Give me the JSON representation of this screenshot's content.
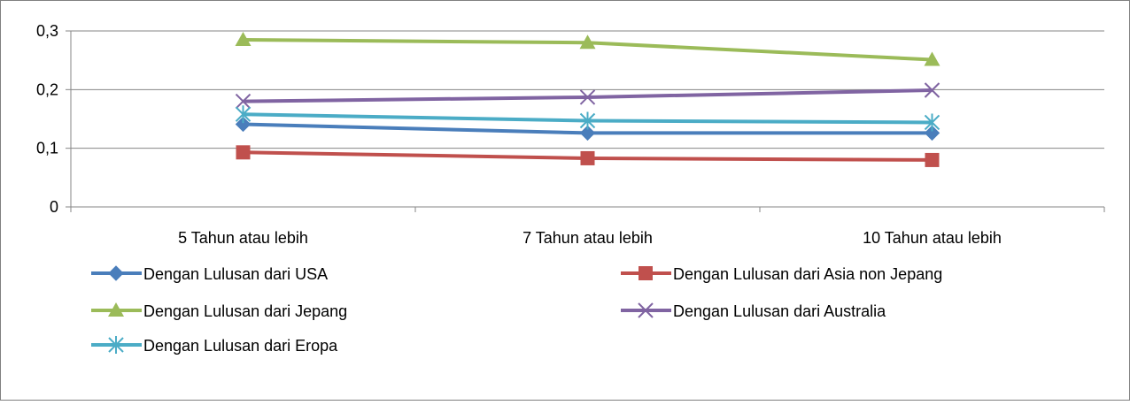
{
  "chart_data": {
    "type": "line",
    "title": "",
    "xlabel": "",
    "ylabel": "",
    "categories": [
      "5 Tahun atau lebih",
      "7 Tahun atau lebih",
      "10 Tahun atau lebih"
    ],
    "ylim": [
      0,
      0.3
    ],
    "yticks": [
      0,
      0.1,
      0.2,
      0.3
    ],
    "ytick_labels": [
      "0",
      "0,1",
      "0,2",
      "0,3"
    ],
    "grid": true,
    "legend_position": "bottom",
    "series": [
      {
        "name": "Dengan Lulusan dari USA",
        "values": [
          0.141,
          0.126,
          0.126
        ],
        "color": "#4a7ebb",
        "marker": "diamond"
      },
      {
        "name": "Dengan Lulusan dari Asia non Jepang",
        "values": [
          0.093,
          0.083,
          0.08
        ],
        "color": "#c0504d",
        "marker": "square"
      },
      {
        "name": "Dengan Lulusan dari Jepang",
        "values": [
          0.285,
          0.28,
          0.251
        ],
        "color": "#9bbb59",
        "marker": "triangle"
      },
      {
        "name": "Dengan Lulusan dari Australia",
        "values": [
          0.18,
          0.187,
          0.199
        ],
        "color": "#8064a2",
        "marker": "x"
      },
      {
        "name": "Dengan Lulusan dari Eropa",
        "values": [
          0.158,
          0.147,
          0.144
        ],
        "color": "#4bacc6",
        "marker": "star"
      }
    ]
  }
}
